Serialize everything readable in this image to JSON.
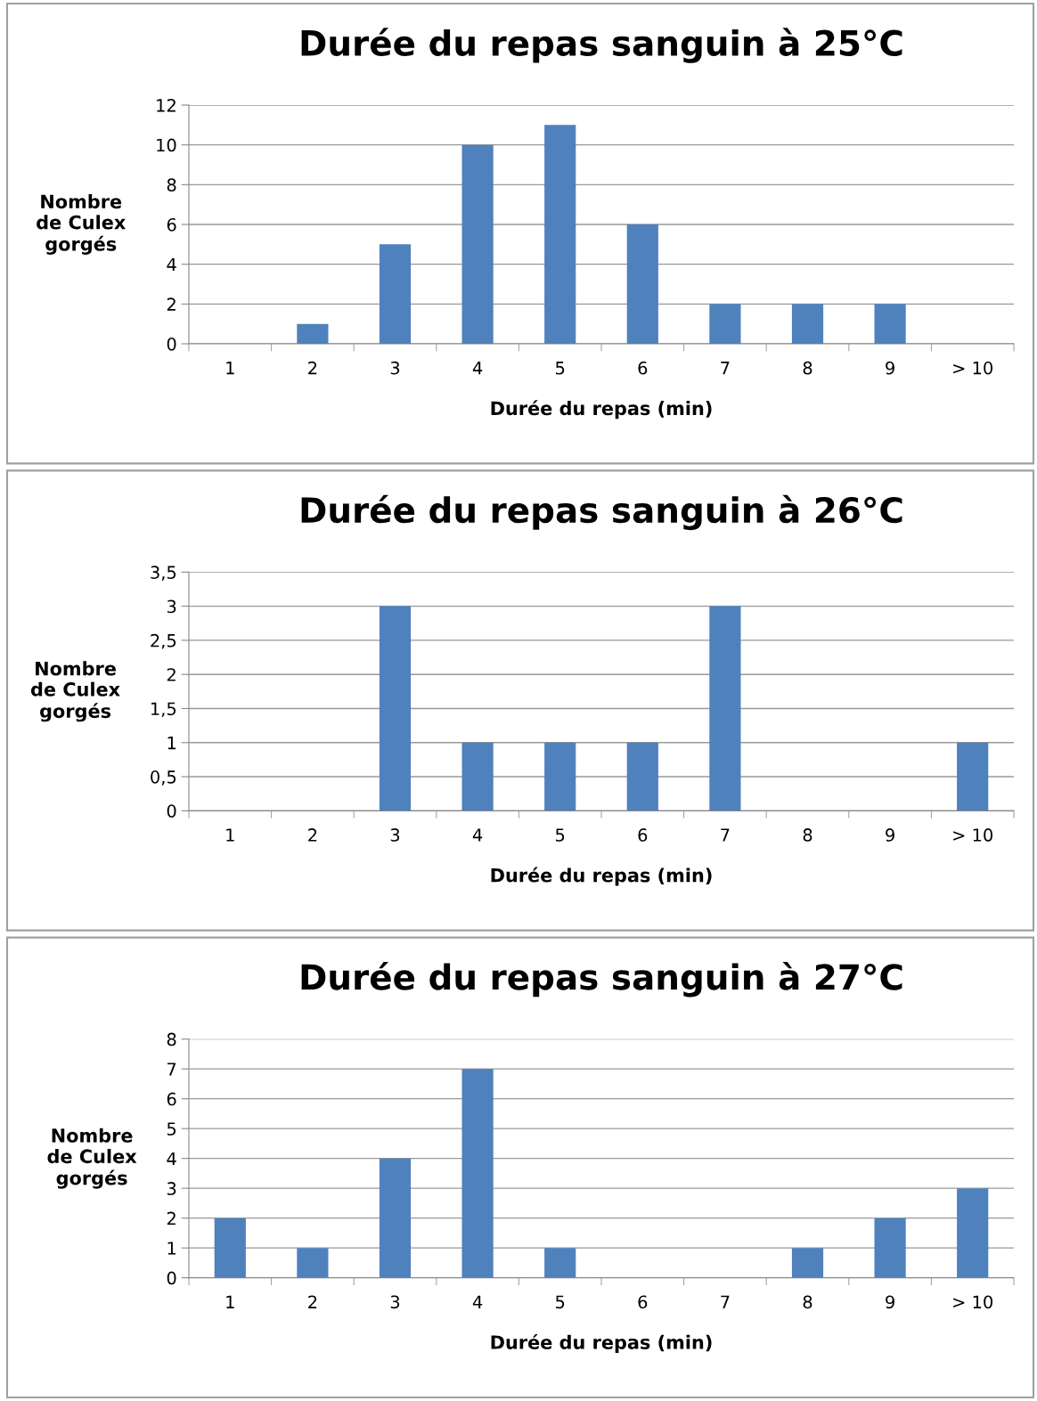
{
  "chart_data": [
    {
      "type": "bar",
      "title": "Durée du repas sanguin à 25°C",
      "xlabel": "Durée du repas (min)",
      "ylabel": "Nombre\nde Culex\ngorgés",
      "categories": [
        "1",
        "2",
        "3",
        "4",
        "5",
        "6",
        "7",
        "8",
        "9",
        "> 10"
      ],
      "values": [
        0,
        1,
        5,
        10,
        11,
        6,
        2,
        2,
        2,
        0
      ],
      "color": "#4f81bd",
      "ylim": [
        0,
        12
      ],
      "yticks": [
        0,
        2,
        4,
        6,
        8,
        10,
        12
      ],
      "grid": "y",
      "legend": false
    },
    {
      "type": "bar",
      "title": "Durée du repas sanguin à 26°C",
      "xlabel": "Durée du repas (min)",
      "ylabel": "Nombre\nde Culex\ngorgés",
      "categories": [
        "1",
        "2",
        "3",
        "4",
        "5",
        "6",
        "7",
        "8",
        "9",
        "> 10"
      ],
      "values": [
        0,
        0,
        3,
        1,
        1,
        1,
        3,
        0,
        0,
        1
      ],
      "color": "#4f81bd",
      "ylim": [
        0,
        3.5
      ],
      "yticks": [
        0,
        {
          "value": 0.5,
          "label": "0,5"
        },
        1,
        {
          "value": 1.5,
          "label": "1,5"
        },
        2,
        {
          "value": 2.5,
          "label": "2,5"
        },
        3,
        {
          "value": 3.5,
          "label": "3,5"
        }
      ],
      "grid": "y",
      "legend": false
    },
    {
      "type": "bar",
      "title": "Durée du repas sanguin à 27°C",
      "xlabel": "Durée du repas (min)",
      "ylabel": "Nombre\nde Culex\ngorgés",
      "categories": [
        "1",
        "2",
        "3",
        "4",
        "5",
        "6",
        "7",
        "8",
        "9",
        "> 10"
      ],
      "values": [
        2,
        1,
        4,
        7,
        1,
        0,
        0,
        1,
        2,
        3
      ],
      "color": "#4f81bd",
      "ylim": [
        0,
        8
      ],
      "yticks": [
        0,
        1,
        2,
        3,
        4,
        5,
        6,
        7,
        8
      ],
      "grid": "y",
      "legend": false
    }
  ]
}
